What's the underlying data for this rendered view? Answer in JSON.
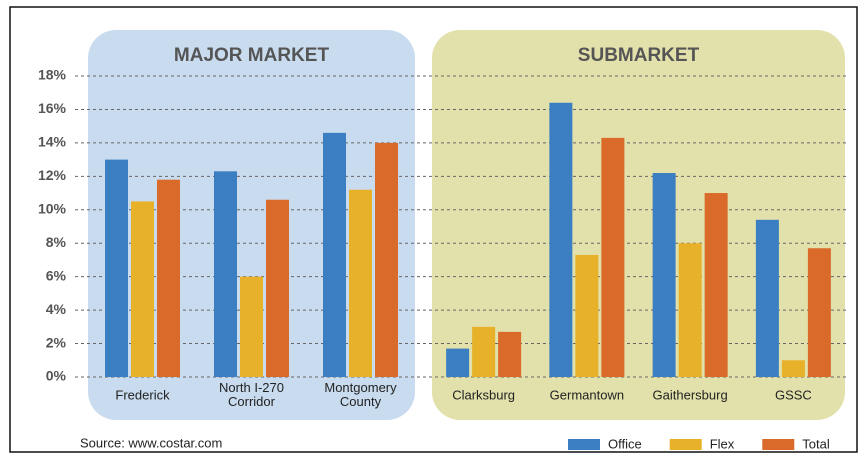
{
  "chart_data": {
    "type": "bar",
    "groups": [
      {
        "name": "MAJOR MARKET",
        "color": "#c9dcef",
        "categories": [
          "Frederick",
          "North I-270 Corridor",
          "Montgomery County"
        ]
      },
      {
        "name": "SUBMARKET",
        "color": "#e3e1ab",
        "categories": [
          "Clarksburg",
          "Germantown",
          "Gaithersburg",
          "GSSC"
        ]
      }
    ],
    "series": [
      {
        "name": "Office",
        "color": "#3b7fc2",
        "values": [
          13.0,
          12.3,
          14.6,
          1.7,
          16.4,
          12.2,
          9.4
        ]
      },
      {
        "name": "Flex",
        "color": "#e8b12a",
        "values": [
          10.5,
          6.0,
          11.2,
          3.0,
          7.3,
          8.0,
          1.0
        ]
      },
      {
        "name": "Total",
        "color": "#d96a2a",
        "values": [
          11.8,
          10.6,
          14.0,
          2.7,
          14.3,
          11.0,
          7.7
        ]
      }
    ],
    "ylim": [
      0,
      18
    ],
    "yticks": [
      {
        "value": 0,
        "label": "0%"
      },
      {
        "value": 2,
        "label": "2%"
      },
      {
        "value": 4,
        "label": "4%"
      },
      {
        "value": 6,
        "label": "6%"
      },
      {
        "value": 8,
        "label": "8%"
      },
      {
        "value": 10,
        "label": "10%"
      },
      {
        "value": 12,
        "label": "12%"
      },
      {
        "value": 14,
        "label": "14%"
      },
      {
        "value": 16,
        "label": "16%"
      },
      {
        "value": 18,
        "label": "18%"
      }
    ],
    "grid": true,
    "source": "Source: www.costar.com"
  }
}
